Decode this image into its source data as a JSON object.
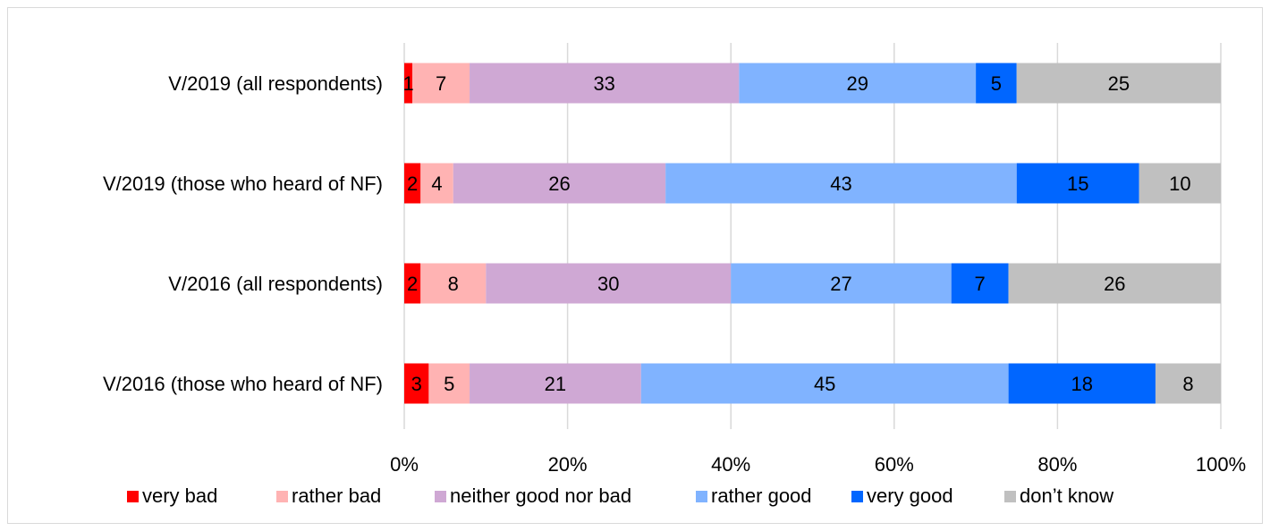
{
  "chart_data": {
    "type": "bar",
    "orientation": "horizontal",
    "stacked": true,
    "percent": true,
    "categories": [
      "V/2019 (all respondents)",
      "V/2019 (those who heard of NF)",
      "V/2016 (all respondents)",
      "V/2016 (those who heard of NF)"
    ],
    "series": [
      {
        "name": "very bad",
        "color": "#ff0000",
        "values": [
          1,
          2,
          2,
          3
        ]
      },
      {
        "name": "rather bad",
        "color": "#ffb3b3",
        "values": [
          7,
          4,
          8,
          5
        ]
      },
      {
        "name": "neither good nor bad",
        "color": "#cfa8d4",
        "values": [
          33,
          26,
          30,
          21
        ]
      },
      {
        "name": "rather good",
        "color": "#80b3ff",
        "values": [
          29,
          43,
          27,
          45
        ]
      },
      {
        "name": "very good",
        "color": "#0066ff",
        "values": [
          5,
          15,
          7,
          18
        ]
      },
      {
        "name": "don’t know",
        "color": "#c0c0c0",
        "values": [
          25,
          10,
          26,
          8
        ]
      }
    ],
    "xticks": [
      "0%",
      "20%",
      "40%",
      "60%",
      "80%",
      "100%"
    ],
    "xlim": [
      0,
      100
    ],
    "grid": true,
    "legend_position": "bottom"
  }
}
